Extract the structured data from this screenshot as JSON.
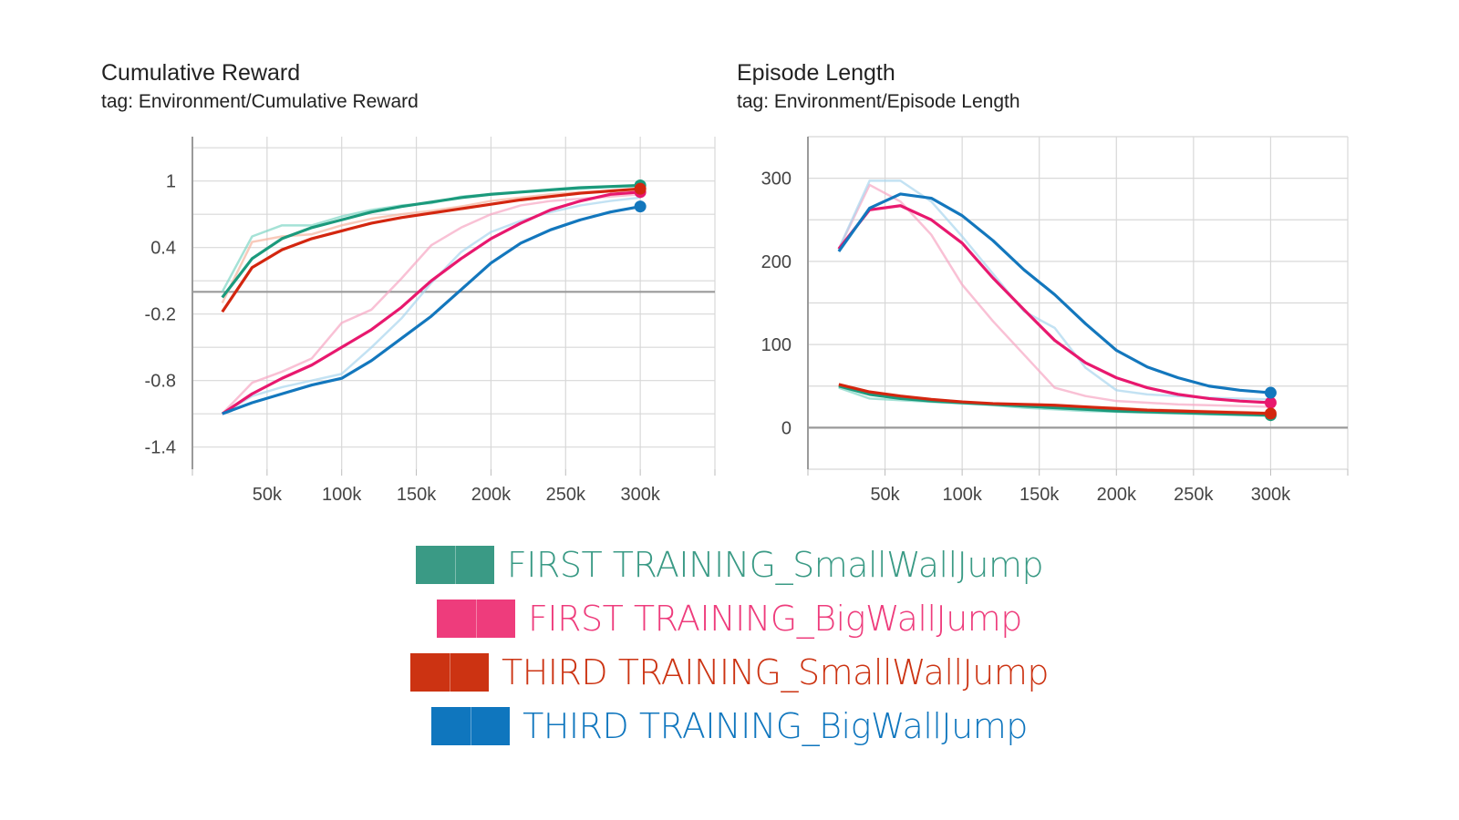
{
  "chart_data": [
    {
      "type": "line",
      "title": "Cumulative Reward",
      "subtitle": "tag: Environment/Cumulative Reward",
      "xlabel": "",
      "ylabel": "",
      "xlim": [
        0,
        350000
      ],
      "ylim": [
        -1.6,
        1.4
      ],
      "xticks": [
        50000,
        100000,
        150000,
        200000,
        250000,
        300000
      ],
      "xtick_labels": [
        "50k",
        "100k",
        "150k",
        "200k",
        "250k",
        "300k"
      ],
      "yticks": [
        1,
        0.4,
        -0.2,
        -0.8,
        -1.4
      ],
      "ytick_labels": [
        "1",
        "0.4",
        "-0.2",
        "-0.8",
        "-1.4"
      ],
      "grid": true,
      "series": [
        {
          "name": "FIRST TRAINING_SmallWallJump",
          "color": "#1b9a7c",
          "x": [
            20000,
            40000,
            60000,
            80000,
            100000,
            120000,
            140000,
            160000,
            180000,
            200000,
            220000,
            240000,
            260000,
            280000,
            300000
          ],
          "y": [
            -0.05,
            0.3,
            0.48,
            0.58,
            0.65,
            0.72,
            0.77,
            0.81,
            0.85,
            0.88,
            0.9,
            0.92,
            0.94,
            0.95,
            0.96
          ]
        },
        {
          "name": "FIRST TRAINING_BigWallJump",
          "color": "#e8186e",
          "x": [
            20000,
            40000,
            60000,
            80000,
            100000,
            120000,
            140000,
            160000,
            180000,
            200000,
            220000,
            240000,
            260000,
            280000,
            300000
          ],
          "y": [
            -1.1,
            -0.92,
            -0.78,
            -0.66,
            -0.5,
            -0.34,
            -0.14,
            0.1,
            0.3,
            0.48,
            0.62,
            0.74,
            0.82,
            0.88,
            0.9
          ]
        },
        {
          "name": "THIRD TRAINING_SmallWallJump",
          "color": "#d3260f",
          "x": [
            20000,
            40000,
            60000,
            80000,
            100000,
            120000,
            140000,
            160000,
            180000,
            200000,
            220000,
            240000,
            260000,
            280000,
            300000
          ],
          "y": [
            -0.18,
            0.22,
            0.38,
            0.48,
            0.55,
            0.62,
            0.67,
            0.71,
            0.75,
            0.79,
            0.83,
            0.86,
            0.89,
            0.91,
            0.93
          ]
        },
        {
          "name": "THIRD TRAINING_BigWallJump",
          "color": "#1377bd",
          "x": [
            20000,
            40000,
            60000,
            80000,
            100000,
            120000,
            140000,
            160000,
            180000,
            200000,
            220000,
            240000,
            260000,
            280000,
            300000
          ],
          "y": [
            -1.1,
            -1.0,
            -0.92,
            -0.84,
            -0.78,
            -0.62,
            -0.42,
            -0.22,
            0.02,
            0.26,
            0.44,
            0.56,
            0.65,
            0.72,
            0.77
          ]
        }
      ],
      "faded_series": [
        {
          "color": "#7fd6c4",
          "x": [
            20000,
            40000,
            60000,
            80000,
            100000,
            120000,
            140000,
            160000,
            180000,
            200000,
            220000,
            240000,
            260000,
            280000,
            300000
          ],
          "y": [
            0.0,
            0.5,
            0.6,
            0.6,
            0.68,
            0.74,
            0.78,
            0.8,
            0.86,
            0.88,
            0.9,
            0.92,
            0.93,
            0.95,
            0.96
          ]
        },
        {
          "color": "#f7a7c3",
          "x": [
            20000,
            40000,
            60000,
            80000,
            100000,
            120000,
            140000,
            160000,
            180000,
            200000,
            220000,
            240000,
            260000,
            280000,
            300000
          ],
          "y": [
            -1.1,
            -0.82,
            -0.72,
            -0.6,
            -0.28,
            -0.16,
            0.12,
            0.42,
            0.58,
            0.7,
            0.78,
            0.82,
            0.84,
            0.86,
            0.88
          ]
        },
        {
          "color": "#f5b49e",
          "x": [
            20000,
            40000,
            60000,
            80000,
            100000,
            120000,
            140000,
            160000,
            180000,
            200000,
            220000,
            240000,
            260000,
            280000,
            300000
          ],
          "y": [
            -0.1,
            0.45,
            0.5,
            0.52,
            0.6,
            0.66,
            0.7,
            0.73,
            0.77,
            0.82,
            0.85,
            0.88,
            0.9,
            0.91,
            0.92
          ]
        },
        {
          "color": "#a9d6ee",
          "x": [
            20000,
            40000,
            60000,
            80000,
            100000,
            120000,
            140000,
            160000,
            180000,
            200000,
            220000,
            240000,
            260000,
            280000,
            300000
          ],
          "y": [
            -1.1,
            -0.94,
            -0.86,
            -0.8,
            -0.74,
            -0.5,
            -0.24,
            0.08,
            0.36,
            0.54,
            0.64,
            0.72,
            0.78,
            0.82,
            0.85
          ]
        }
      ]
    },
    {
      "type": "line",
      "title": "Episode Length",
      "subtitle": "tag: Environment/Episode Length",
      "xlabel": "",
      "ylabel": "",
      "xlim": [
        0,
        350000
      ],
      "ylim": [
        -50,
        350
      ],
      "xticks": [
        50000,
        100000,
        150000,
        200000,
        250000,
        300000
      ],
      "xtick_labels": [
        "50k",
        "100k",
        "150k",
        "200k",
        "250k",
        "300k"
      ],
      "yticks": [
        300,
        200,
        100,
        0
      ],
      "ytick_labels": [
        "300",
        "200",
        "100",
        "0"
      ],
      "grid": true,
      "series": [
        {
          "name": "FIRST TRAINING_SmallWallJump",
          "color": "#1b9a7c",
          "x": [
            20000,
            40000,
            60000,
            80000,
            100000,
            120000,
            140000,
            160000,
            180000,
            200000,
            220000,
            240000,
            260000,
            280000,
            300000
          ],
          "y": [
            50,
            40,
            35,
            32,
            30,
            28,
            26,
            24,
            22,
            20,
            19,
            18,
            17,
            16,
            15
          ]
        },
        {
          "name": "FIRST TRAINING_BigWallJump",
          "color": "#e8186e",
          "x": [
            20000,
            40000,
            60000,
            80000,
            100000,
            120000,
            140000,
            160000,
            180000,
            200000,
            220000,
            240000,
            260000,
            280000,
            300000
          ],
          "y": [
            215,
            262,
            267,
            250,
            222,
            180,
            142,
            105,
            78,
            60,
            48,
            40,
            35,
            32,
            30
          ]
        },
        {
          "name": "THIRD TRAINING_SmallWallJump",
          "color": "#d3260f",
          "x": [
            20000,
            40000,
            60000,
            80000,
            100000,
            120000,
            140000,
            160000,
            180000,
            200000,
            220000,
            240000,
            260000,
            280000,
            300000
          ],
          "y": [
            52,
            43,
            38,
            34,
            31,
            29,
            28,
            27,
            25,
            23,
            21,
            20,
            19,
            18,
            17
          ]
        },
        {
          "name": "THIRD TRAINING_BigWallJump",
          "color": "#1377bd",
          "x": [
            20000,
            40000,
            60000,
            80000,
            100000,
            120000,
            140000,
            160000,
            180000,
            200000,
            220000,
            240000,
            260000,
            280000,
            300000
          ],
          "y": [
            212,
            264,
            281,
            276,
            255,
            225,
            190,
            160,
            125,
            93,
            73,
            60,
            50,
            45,
            42
          ]
        }
      ],
      "faded_series": [
        {
          "color": "#7fd6c4",
          "x": [
            20000,
            40000,
            60000,
            80000,
            100000,
            120000,
            140000,
            160000,
            180000,
            200000,
            220000,
            240000,
            260000,
            280000,
            300000
          ],
          "y": [
            48,
            35,
            33,
            31,
            29,
            27,
            24,
            22,
            20,
            19,
            18,
            17,
            16,
            15,
            14
          ]
        },
        {
          "color": "#f7a7c3",
          "x": [
            20000,
            40000,
            60000,
            80000,
            100000,
            120000,
            140000,
            160000,
            180000,
            200000,
            220000,
            240000,
            260000,
            280000,
            300000
          ],
          "y": [
            215,
            292,
            272,
            232,
            172,
            128,
            88,
            48,
            38,
            32,
            30,
            28,
            27,
            26,
            25
          ]
        },
        {
          "color": "#f5b49e",
          "x": [
            20000,
            40000,
            60000,
            80000,
            100000,
            120000,
            140000,
            160000,
            180000,
            200000,
            220000,
            240000,
            260000,
            280000,
            300000
          ],
          "y": [
            50,
            42,
            36,
            33,
            30,
            28,
            27,
            26,
            25,
            24,
            22,
            21,
            20,
            19,
            18
          ]
        },
        {
          "color": "#a9d6ee",
          "x": [
            20000,
            40000,
            60000,
            80000,
            100000,
            120000,
            140000,
            160000,
            180000,
            200000,
            220000,
            240000,
            260000,
            280000,
            300000
          ],
          "y": [
            215,
            297,
            297,
            272,
            230,
            185,
            140,
            120,
            72,
            45,
            40,
            38,
            36,
            35,
            34
          ]
        }
      ]
    }
  ],
  "legend": [
    {
      "label": "FIRST TRAINING_SmallWallJump",
      "color": "#3a9a85"
    },
    {
      "label": "FIRST TRAINING_BigWallJump",
      "color": "#ee3c7c"
    },
    {
      "label": "THIRD TRAINING_SmallWallJump",
      "color": "#cc3312"
    },
    {
      "label": "THIRD TRAINING_BigWallJump",
      "color": "#0f76be"
    }
  ]
}
